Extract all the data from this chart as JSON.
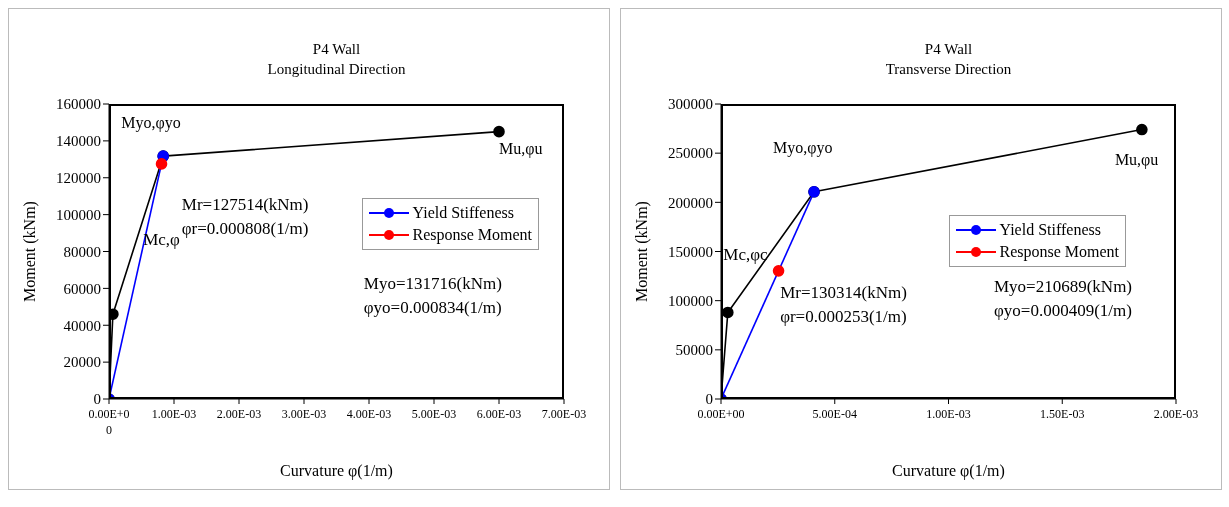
{
  "chart_data": [
    {
      "type": "line",
      "title": "P4 Wall\nLongitudinal Direction",
      "xlabel": "Curvature φ(1/m)",
      "ylabel": "Moment (kNm)",
      "xlim": [
        0,
        0.007
      ],
      "xticks": [
        {
          "value": 0,
          "label": "0.00E+00"
        },
        {
          "value": 0.001,
          "label": "1.00E-03"
        },
        {
          "value": 0.002,
          "label": "2.00E-03"
        },
        {
          "value": 0.003,
          "label": "3.00E-03"
        },
        {
          "value": 0.004,
          "label": "4.00E-03"
        },
        {
          "value": 0.005,
          "label": "5.00E-03"
        },
        {
          "value": 0.006,
          "label": "6.00E-03"
        },
        {
          "value": 0.007,
          "label": "7.00E-03"
        }
      ],
      "ylim": [
        0,
        160000
      ],
      "yticks": [
        0,
        20000,
        40000,
        60000,
        80000,
        100000,
        120000,
        140000,
        160000
      ],
      "series": [
        {
          "color": "#000000",
          "x": [
            0,
            6e-05,
            0.000834,
            0.006
          ],
          "values": [
            0,
            46000,
            131716,
            145000
          ]
        },
        {
          "name": "Yield Stiffeness",
          "color": "#0000ff",
          "x": [
            0,
            0.000834
          ],
          "values": [
            0,
            131716
          ]
        },
        {
          "name": "Response Moment",
          "color": "#ff0000",
          "x": [
            0.000808
          ],
          "values": [
            127514
          ]
        }
      ],
      "annotations": [
        {
          "text": "Myo,φyo",
          "x": 0.000834,
          "y": 131716
        },
        {
          "text": "Mu,φu",
          "x": 0.006,
          "y": 145000
        },
        "Mc,φ",
        "Mr=127514(kNm)\nφr=0.000808(1/m)",
        "Myo=131716(kNm)\nφyo=0.000834(1/m)"
      ],
      "legend": "right",
      "marker": "circle",
      "line_style": "solid",
      "grid": false
    },
    {
      "type": "line",
      "title": "P4 Wall\nTransverse Direction",
      "xlabel": "Curvature φ(1/m)",
      "ylabel": "Moment (kNm)",
      "xlim": [
        0,
        0.002
      ],
      "xticks": [
        {
          "value": 0,
          "label": "0.00E+00"
        },
        {
          "value": 0.0005,
          "label": "5.00E-04"
        },
        {
          "value": 0.001,
          "label": "1.00E-03"
        },
        {
          "value": 0.0015,
          "label": "1.50E-03"
        },
        {
          "value": 0.002,
          "label": "2.00E-03"
        }
      ],
      "ylim": [
        0,
        300000
      ],
      "yticks": [
        0,
        50000,
        100000,
        150000,
        200000,
        250000,
        300000
      ],
      "series": [
        {
          "color": "#000000",
          "x": [
            0,
            3e-05,
            0.000409,
            0.00185
          ],
          "values": [
            0,
            88000,
            210689,
            274000
          ]
        },
        {
          "name": "Yield Stiffeness",
          "color": "#0000ff",
          "x": [
            0,
            0.000409
          ],
          "values": [
            0,
            210689
          ]
        },
        {
          "name": "Response Moment",
          "color": "#ff0000",
          "x": [
            0.000253
          ],
          "values": [
            130314
          ]
        }
      ],
      "annotations": [
        {
          "text": "Myo,φyo",
          "x": 0.000409,
          "y": 210689
        },
        {
          "text": "Mu,φu",
          "x": 0.00185,
          "y": 274000
        },
        "Mc,φc",
        "Mr=130314(kNm)\nφr=0.000253(1/m)",
        "Myo=210689(kNm)\nφyo=0.000409(1/m)"
      ],
      "legend": "right",
      "marker": "circle",
      "line_style": "solid",
      "grid": false
    }
  ]
}
